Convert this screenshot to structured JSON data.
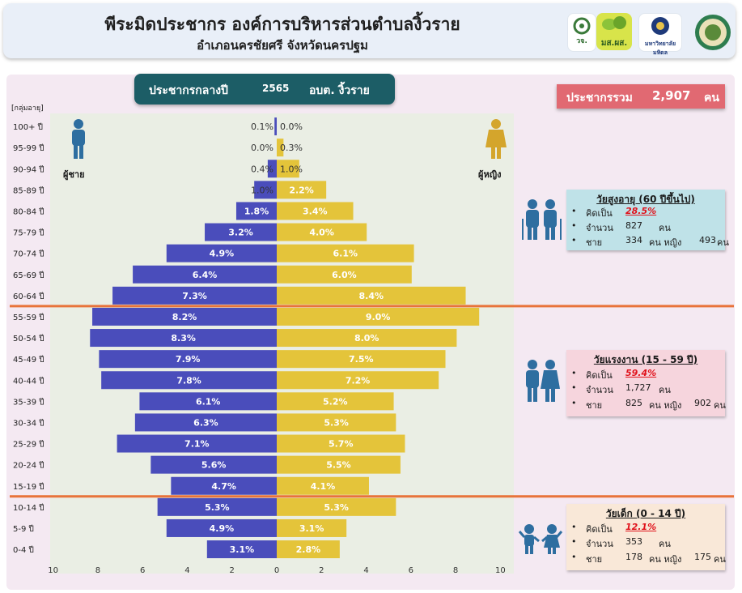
{
  "header": {
    "title": "พีระมิดประชากร องค์การบริหารส่วนตำบลงิ้วราย",
    "subtitle": "อำเภอนครชัยศรี จังหวัดนครปฐม",
    "logo_texts": [
      "วจ.",
      "มส.ผส.",
      "มหาวิทยาลัยมหิดล"
    ]
  },
  "badge_year": {
    "label": "ประชากรกลางปี",
    "year": "2565",
    "org": "อบต. งิ้วราย"
  },
  "badge_total": {
    "label": "ประชากรรวม",
    "value": "2,907",
    "unit": "คน"
  },
  "colors": {
    "male": "#4a4dbb",
    "female": "#e4c43a",
    "divider": "#e8733a",
    "icon": "#2e6ea0",
    "female_icon": "#d4a52c"
  },
  "legend": {
    "male": "ผู้ชาย",
    "female": "ผู้หญิง"
  },
  "age_axis_label": "[กลุ่มอายุ]",
  "chart_data": {
    "type": "bar",
    "orientation": "horizontal-population-pyramid",
    "categories": [
      "100+ ปี",
      "95-99 ปี",
      "90-94 ปี",
      "85-89 ปี",
      "80-84 ปี",
      "75-79 ปี",
      "70-74 ปี",
      "65-69 ปี",
      "60-64 ปี",
      "55-59 ปี",
      "50-54 ปี",
      "45-49 ปี",
      "40-44 ปี",
      "35-39 ปี",
      "30-34 ปี",
      "25-29 ปี",
      "20-24 ปี",
      "15-19 ปี",
      "10-14 ปี",
      "5-9 ปี",
      "0-4 ปี"
    ],
    "series": [
      {
        "name": "ผู้ชาย",
        "values": [
          0.1,
          0.0,
          0.4,
          1.0,
          1.8,
          3.2,
          4.9,
          6.4,
          7.3,
          8.2,
          8.3,
          7.9,
          7.8,
          6.1,
          6.3,
          7.1,
          5.6,
          4.7,
          5.3,
          4.9,
          3.1
        ],
        "labels": [
          "0.1%",
          "0.0%",
          "0.4%",
          "1.0%",
          "1.8%",
          "3.2%",
          "4.9%",
          "6.4%",
          "7.3%",
          "8.2%",
          "8.3%",
          "7.9%",
          "7.8%",
          "6.1%",
          "6.3%",
          "7.1%",
          "5.6%",
          "4.7%",
          "5.3%",
          "4.9%",
          "3.1%"
        ]
      },
      {
        "name": "ผู้หญิง",
        "values": [
          0.0,
          0.3,
          1.0,
          2.2,
          3.4,
          4.0,
          6.1,
          6.0,
          8.4,
          9.0,
          8.0,
          7.5,
          7.2,
          5.2,
          5.3,
          5.7,
          5.5,
          4.1,
          5.3,
          3.1,
          2.8
        ],
        "labels": [
          "0.0%",
          "0.3%",
          "1.0%",
          "2.2%",
          "3.4%",
          "4.0%",
          "6.1%",
          "6.0%",
          "8.4%",
          "9.0%",
          "8.0%",
          "7.5%",
          "7.2%",
          "5.2%",
          "5.3%",
          "5.7%",
          "5.5%",
          "4.1%",
          "5.3%",
          "3.1%",
          "2.8%"
        ]
      }
    ],
    "xlim": [
      -10,
      10
    ],
    "xticks": [
      "10",
      "8",
      "6",
      "4",
      "2",
      "0",
      "2",
      "4",
      "6",
      "8",
      "10"
    ],
    "dividers_between": [
      [
        "60-64 ปี",
        "55-59 ปี"
      ],
      [
        "15-19 ปี",
        "10-14 ปี"
      ]
    ]
  },
  "groups": {
    "elderly": {
      "title": "วัยสูงอายุ (60 ปีขึ้นไป)",
      "pct_label": "คิดเป็น",
      "pct": "28.5%",
      "count_label": "จำนวน",
      "count": "827",
      "unit": "คน",
      "male_label": "ชาย",
      "male": "334",
      "female_label": "คน หญิง",
      "female": "493",
      "female_unit": "คน"
    },
    "working": {
      "title": "วัยแรงงาน (15 - 59 ปี)",
      "pct_label": "คิดเป็น",
      "pct": "59.4%",
      "count_label": "จำนวน",
      "count": "1,727",
      "unit": "คน",
      "male_label": "ชาย",
      "male": "825",
      "female_label": "คน หญิง",
      "female": "902",
      "female_unit": "คน"
    },
    "child": {
      "title": "วัยเด็ก (0 - 14 ปี)",
      "pct_label": "คิดเป็น",
      "pct": "12.1%",
      "count_label": "จำนวน",
      "count": "353",
      "unit": "คน",
      "male_label": "ชาย",
      "male": "178",
      "female_label": "คน หญิง",
      "female": "175",
      "female_unit": "คน"
    }
  },
  "bullet": "•"
}
